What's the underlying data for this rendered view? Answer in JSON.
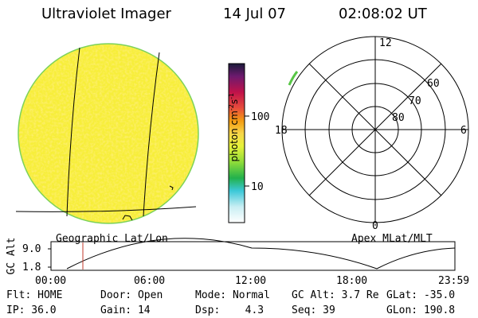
{
  "header": {
    "instrument": "Ultraviolet Imager",
    "date": "14 Jul 07",
    "time": "02:08:02 UT"
  },
  "image_panel": {
    "label": "Geographic Lat/Lon"
  },
  "colorbar": {
    "unit_label": "photon cm",
    "unit_sup1": "-2",
    "unit_mid": "s",
    "unit_sup2": "-1",
    "ticks": [
      "100",
      "10"
    ]
  },
  "polar_plot": {
    "label": "Apex MLat/MLT",
    "mlt_labels": [
      "12",
      "18",
      "6",
      "0"
    ],
    "mlat_labels": [
      "60",
      "70",
      "80"
    ]
  },
  "altitude_plot": {
    "ylabel": "GC Alt",
    "yticks": [
      "9.0",
      "1.8"
    ],
    "xticks": [
      "00:00",
      "06:00",
      "12:00",
      "18:00",
      "23:59"
    ],
    "marker_time": "02:08"
  },
  "status": {
    "flt_label": "Flt: HOME",
    "door_label": "Door: Open",
    "mode_label": "Mode: Normal",
    "gcalt_label": "GC Alt: 3.7 Re",
    "glat_label": "GLat: -35.0",
    "ip_label": "IP: 36.0",
    "gain_label": "Gain: 14",
    "dsp_label": "Dsp:",
    "dsp_value": "4.3",
    "seq_label": "Seq: 39",
    "glon_label": "GLon: 190.8"
  },
  "colors": {
    "image_fill": "#f7ee3a",
    "limb": "#7cd25a",
    "marker": "#c0392b"
  }
}
